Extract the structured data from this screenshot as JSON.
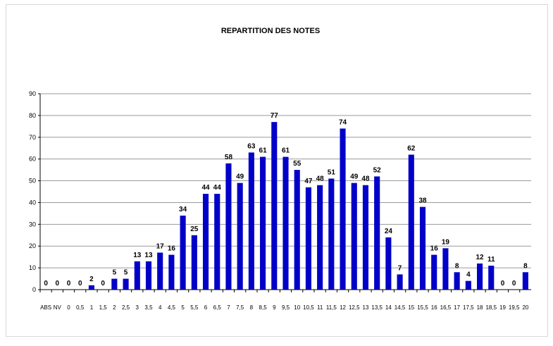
{
  "chart_data": {
    "type": "bar",
    "title": "REPARTITION DES NOTES",
    "xlabel": "",
    "ylabel": "",
    "ylim": [
      0,
      90
    ],
    "yticks": [
      0,
      10,
      20,
      30,
      40,
      50,
      60,
      70,
      80,
      90
    ],
    "grid": true,
    "legend": "none",
    "bar_color": "#0000c8",
    "categories": [
      "ABS",
      "NV",
      "0",
      "0,5",
      "1",
      "1,5",
      "2",
      "2,5",
      "3",
      "3,5",
      "4",
      "4,5",
      "5",
      "5,5",
      "6",
      "6,5",
      "7",
      "7,5",
      "8",
      "8,5",
      "9",
      "9,5",
      "10",
      "10,5",
      "11",
      "11,5",
      "12",
      "12,5",
      "13",
      "13,5",
      "14",
      "14,5",
      "15",
      "15,5",
      "16",
      "16,5",
      "17",
      "17,5",
      "18",
      "18,5",
      "19",
      "19,5",
      "20"
    ],
    "values": [
      0,
      0,
      0,
      0,
      2,
      0,
      5,
      5,
      13,
      13,
      17,
      16,
      34,
      25,
      44,
      44,
      58,
      49,
      63,
      61,
      77,
      61,
      55,
      47,
      48,
      51,
      74,
      49,
      48,
      52,
      24,
      7,
      62,
      38,
      16,
      19,
      8,
      4,
      12,
      11,
      0,
      0,
      8
    ]
  }
}
